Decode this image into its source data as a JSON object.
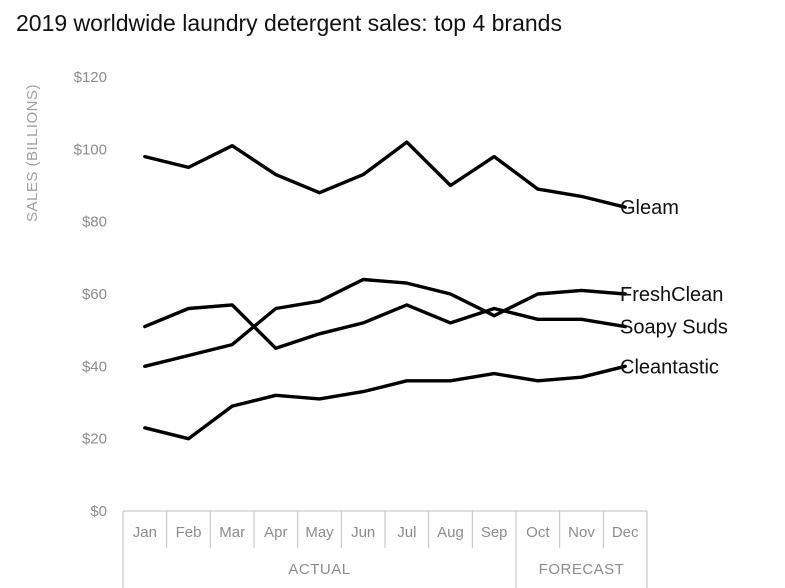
{
  "chart_data": {
    "type": "line",
    "title": "2019 worldwide laundry detergent sales: top 4 brands",
    "ylabel": "SALES (BILLIONS)",
    "xlabel": "",
    "ylim": [
      0,
      120
    ],
    "yticks": [
      0,
      20,
      40,
      60,
      80,
      100,
      120
    ],
    "ytick_labels": [
      "$0",
      "$20",
      "$40",
      "$60",
      "$80",
      "$100",
      "$120"
    ],
    "categories": [
      "Jan",
      "Feb",
      "Mar",
      "Apr",
      "May",
      "Jun",
      "Jul",
      "Aug",
      "Sep",
      "Oct",
      "Nov",
      "Dec"
    ],
    "x_groups": [
      {
        "label": "ACTUAL",
        "start": 0,
        "end": 8
      },
      {
        "label": "FORECAST",
        "start": 9,
        "end": 11
      }
    ],
    "grid": false,
    "legend": "direct labels at right end of lines",
    "line_color": "#000000",
    "series": [
      {
        "name": "Gleam",
        "values": [
          98,
          95,
          101,
          93,
          88,
          93,
          102,
          90,
          98,
          89,
          87,
          84
        ]
      },
      {
        "name": "FreshClean",
        "values": [
          40,
          43,
          46,
          56,
          58,
          64,
          63,
          60,
          54,
          60,
          61,
          60
        ]
      },
      {
        "name": "Soapy Suds",
        "values": [
          51,
          56,
          57,
          45,
          49,
          52,
          57,
          52,
          56,
          53,
          53,
          51
        ]
      },
      {
        "name": "Cleantastic",
        "values": [
          23,
          20,
          29,
          32,
          31,
          33,
          36,
          36,
          38,
          36,
          37,
          40
        ]
      }
    ]
  }
}
